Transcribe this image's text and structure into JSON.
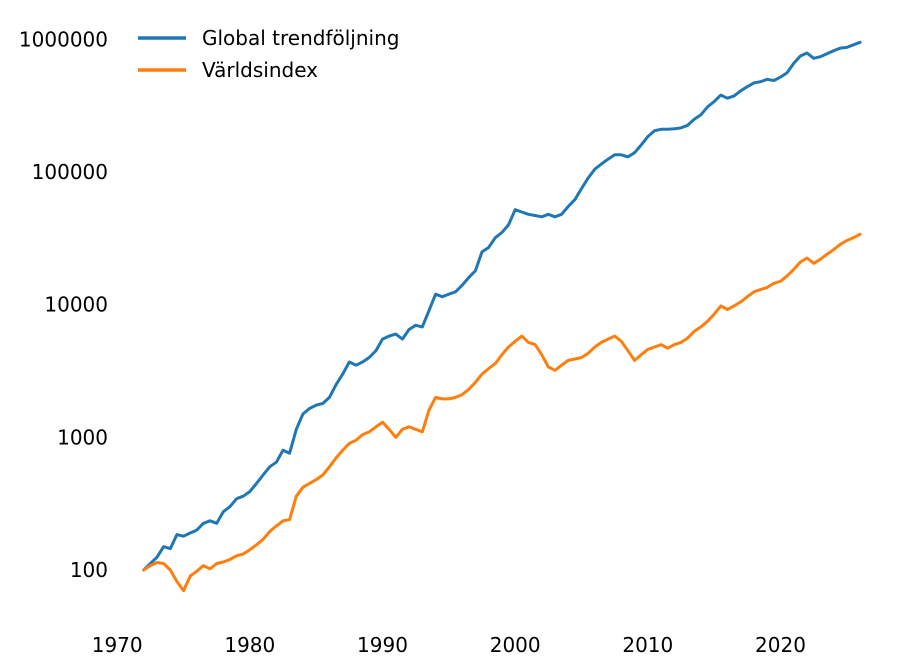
{
  "chart_data": {
    "type": "line",
    "title": "",
    "xlabel": "",
    "ylabel": "",
    "x_scale": "linear",
    "y_scale": "log",
    "xlim": [
      1967.8,
      2027.5
    ],
    "ylim": [
      42,
      1400000
    ],
    "x_ticks": [
      1970,
      1980,
      1990,
      2000,
      2010,
      2020
    ],
    "x_tick_labels": [
      "1970",
      "1980",
      "1990",
      "2000",
      "2010",
      "2020"
    ],
    "y_ticks": [
      100,
      1000,
      10000,
      100000,
      1000000
    ],
    "y_tick_labels": [
      "100",
      "1000",
      "10000",
      "100000",
      "1000000"
    ],
    "grid": false,
    "legend_position": "top-left",
    "series": [
      {
        "name": "Global trendföljning",
        "color": "#1f77b4",
        "points": [
          [
            1972.0,
            100
          ],
          [
            1972.5,
            112
          ],
          [
            1973.0,
            125
          ],
          [
            1973.5,
            150
          ],
          [
            1974.0,
            145
          ],
          [
            1974.5,
            185
          ],
          [
            1975.0,
            180
          ],
          [
            1975.5,
            190
          ],
          [
            1976.0,
            200
          ],
          [
            1976.5,
            225
          ],
          [
            1977.0,
            235
          ],
          [
            1977.5,
            225
          ],
          [
            1978.0,
            275
          ],
          [
            1978.5,
            300
          ],
          [
            1979.0,
            345
          ],
          [
            1979.5,
            360
          ],
          [
            1980.0,
            390
          ],
          [
            1980.5,
            450
          ],
          [
            1981.0,
            520
          ],
          [
            1981.5,
            600
          ],
          [
            1982.0,
            650
          ],
          [
            1982.5,
            800
          ],
          [
            1983.0,
            760
          ],
          [
            1983.5,
            1150
          ],
          [
            1984.0,
            1500
          ],
          [
            1984.5,
            1650
          ],
          [
            1985.0,
            1750
          ],
          [
            1985.5,
            1800
          ],
          [
            1986.0,
            2000
          ],
          [
            1986.5,
            2500
          ],
          [
            1987.0,
            3000
          ],
          [
            1987.5,
            3700
          ],
          [
            1988.0,
            3500
          ],
          [
            1988.5,
            3700
          ],
          [
            1989.0,
            4000
          ],
          [
            1989.5,
            4500
          ],
          [
            1990.0,
            5500
          ],
          [
            1990.5,
            5800
          ],
          [
            1991.0,
            6000
          ],
          [
            1991.5,
            5500
          ],
          [
            1992.0,
            6500
          ],
          [
            1992.5,
            7000
          ],
          [
            1993.0,
            6800
          ],
          [
            1993.5,
            9000
          ],
          [
            1994.0,
            12000
          ],
          [
            1994.5,
            11500
          ],
          [
            1995.0,
            12000
          ],
          [
            1995.5,
            12500
          ],
          [
            1996.0,
            14000
          ],
          [
            1996.5,
            16000
          ],
          [
            1997.0,
            18000
          ],
          [
            1997.5,
            25000
          ],
          [
            1998.0,
            27000
          ],
          [
            1998.5,
            32000
          ],
          [
            1999.0,
            35000
          ],
          [
            1999.5,
            40000
          ],
          [
            2000.0,
            52000
          ],
          [
            2000.5,
            50000
          ],
          [
            2001.0,
            48000
          ],
          [
            2001.5,
            47000
          ],
          [
            2002.0,
            46000
          ],
          [
            2002.5,
            48000
          ],
          [
            2003.0,
            46000
          ],
          [
            2003.5,
            48000
          ],
          [
            2004.0,
            55000
          ],
          [
            2004.5,
            62000
          ],
          [
            2005.0,
            75000
          ],
          [
            2005.5,
            90000
          ],
          [
            2006.0,
            105000
          ],
          [
            2006.5,
            115000
          ],
          [
            2007.0,
            125000
          ],
          [
            2007.5,
            135000
          ],
          [
            2008.0,
            135000
          ],
          [
            2008.5,
            130000
          ],
          [
            2009.0,
            140000
          ],
          [
            2009.5,
            160000
          ],
          [
            2010.0,
            185000
          ],
          [
            2010.5,
            205000
          ],
          [
            2011.0,
            210000
          ],
          [
            2011.5,
            210000
          ],
          [
            2012.0,
            212000
          ],
          [
            2012.5,
            215000
          ],
          [
            2013.0,
            225000
          ],
          [
            2013.5,
            250000
          ],
          [
            2014.0,
            270000
          ],
          [
            2014.5,
            310000
          ],
          [
            2015.0,
            340000
          ],
          [
            2015.5,
            380000
          ],
          [
            2016.0,
            360000
          ],
          [
            2016.5,
            375000
          ],
          [
            2017.0,
            410000
          ],
          [
            2017.5,
            440000
          ],
          [
            2018.0,
            470000
          ],
          [
            2018.5,
            480000
          ],
          [
            2019.0,
            500000
          ],
          [
            2019.5,
            490000
          ],
          [
            2020.0,
            520000
          ],
          [
            2020.5,
            560000
          ],
          [
            2021.0,
            660000
          ],
          [
            2021.5,
            750000
          ],
          [
            2022.0,
            790000
          ],
          [
            2022.5,
            720000
          ],
          [
            2023.0,
            740000
          ],
          [
            2023.5,
            780000
          ],
          [
            2024.0,
            820000
          ],
          [
            2024.5,
            860000
          ],
          [
            2025.0,
            870000
          ],
          [
            2025.5,
            910000
          ],
          [
            2026.0,
            950000
          ]
        ]
      },
      {
        "name": "Världsindex",
        "color": "#ff7f0e",
        "points": [
          [
            1972.0,
            100
          ],
          [
            1972.5,
            108
          ],
          [
            1973.0,
            114
          ],
          [
            1973.5,
            112
          ],
          [
            1974.0,
            100
          ],
          [
            1974.5,
            82
          ],
          [
            1975.0,
            70
          ],
          [
            1975.5,
            90
          ],
          [
            1976.0,
            98
          ],
          [
            1976.5,
            108
          ],
          [
            1977.0,
            102
          ],
          [
            1977.5,
            112
          ],
          [
            1978.0,
            115
          ],
          [
            1978.5,
            120
          ],
          [
            1979.0,
            128
          ],
          [
            1979.5,
            132
          ],
          [
            1980.0,
            142
          ],
          [
            1980.5,
            155
          ],
          [
            1981.0,
            170
          ],
          [
            1981.5,
            195
          ],
          [
            1982.0,
            215
          ],
          [
            1982.5,
            235
          ],
          [
            1983.0,
            240
          ],
          [
            1983.5,
            360
          ],
          [
            1984.0,
            420
          ],
          [
            1984.5,
            450
          ],
          [
            1985.0,
            480
          ],
          [
            1985.5,
            520
          ],
          [
            1986.0,
            600
          ],
          [
            1986.5,
            700
          ],
          [
            1987.0,
            800
          ],
          [
            1987.5,
            900
          ],
          [
            1988.0,
            950
          ],
          [
            1988.5,
            1050
          ],
          [
            1989.0,
            1100
          ],
          [
            1989.5,
            1200
          ],
          [
            1990.0,
            1300
          ],
          [
            1990.5,
            1150
          ],
          [
            1991.0,
            1000
          ],
          [
            1991.5,
            1150
          ],
          [
            1992.0,
            1200
          ],
          [
            1992.5,
            1150
          ],
          [
            1993.0,
            1100
          ],
          [
            1993.5,
            1600
          ],
          [
            1994.0,
            2000
          ],
          [
            1994.5,
            1950
          ],
          [
            1995.0,
            1950
          ],
          [
            1995.5,
            2000
          ],
          [
            1996.0,
            2100
          ],
          [
            1996.5,
            2300
          ],
          [
            1997.0,
            2600
          ],
          [
            1997.5,
            3000
          ],
          [
            1998.0,
            3300
          ],
          [
            1998.5,
            3600
          ],
          [
            1999.0,
            4200
          ],
          [
            1999.5,
            4800
          ],
          [
            2000.0,
            5300
          ],
          [
            2000.5,
            5800
          ],
          [
            2001.0,
            5200
          ],
          [
            2001.5,
            5000
          ],
          [
            2002.0,
            4200
          ],
          [
            2002.5,
            3400
          ],
          [
            2003.0,
            3200
          ],
          [
            2003.5,
            3500
          ],
          [
            2004.0,
            3800
          ],
          [
            2004.5,
            3900
          ],
          [
            2005.0,
            4000
          ],
          [
            2005.5,
            4300
          ],
          [
            2006.0,
            4800
          ],
          [
            2006.5,
            5200
          ],
          [
            2007.0,
            5500
          ],
          [
            2007.5,
            5800
          ],
          [
            2008.0,
            5300
          ],
          [
            2008.5,
            4500
          ],
          [
            2009.0,
            3800
          ],
          [
            2009.5,
            4200
          ],
          [
            2010.0,
            4600
          ],
          [
            2010.5,
            4800
          ],
          [
            2011.0,
            5000
          ],
          [
            2011.5,
            4700
          ],
          [
            2012.0,
            5000
          ],
          [
            2012.5,
            5200
          ],
          [
            2013.0,
            5600
          ],
          [
            2013.5,
            6300
          ],
          [
            2014.0,
            6800
          ],
          [
            2014.5,
            7500
          ],
          [
            2015.0,
            8500
          ],
          [
            2015.5,
            9800
          ],
          [
            2016.0,
            9200
          ],
          [
            2016.5,
            9800
          ],
          [
            2017.0,
            10500
          ],
          [
            2017.5,
            11500
          ],
          [
            2018.0,
            12500
          ],
          [
            2018.5,
            13000
          ],
          [
            2019.0,
            13500
          ],
          [
            2019.5,
            14500
          ],
          [
            2020.0,
            15000
          ],
          [
            2020.5,
            16500
          ],
          [
            2021.0,
            18500
          ],
          [
            2021.5,
            21000
          ],
          [
            2022.0,
            22500
          ],
          [
            2022.5,
            20500
          ],
          [
            2023.0,
            22000
          ],
          [
            2023.5,
            24000
          ],
          [
            2024.0,
            26000
          ],
          [
            2024.5,
            28500
          ],
          [
            2025.0,
            30500
          ],
          [
            2025.5,
            32000
          ],
          [
            2026.0,
            34000
          ]
        ]
      }
    ]
  }
}
